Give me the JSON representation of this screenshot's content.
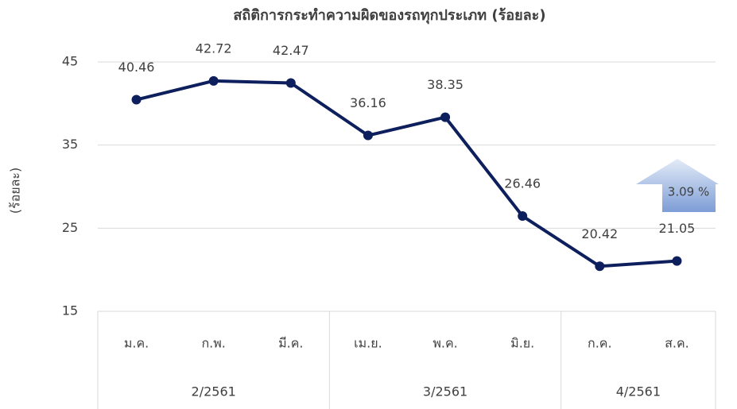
{
  "chart_data": {
    "type": "line",
    "title": "สถิติการกระทำความผิดของรถทุกประเภท (ร้อยละ)",
    "y_label": "(ร้อยละ)",
    "groups": [
      {
        "label": "2/2561",
        "categories": [
          "ม.ค.",
          "ก.พ.",
          "มี.ค."
        ]
      },
      {
        "label": "3/2561",
        "categories": [
          "เม.ย.",
          "พ.ค.",
          "มิ.ย."
        ]
      },
      {
        "label": "4/2561",
        "categories": [
          "ก.ค.",
          "ส.ค."
        ]
      }
    ],
    "values": [
      40.46,
      42.72,
      42.47,
      36.16,
      38.35,
      26.46,
      20.42,
      21.05
    ],
    "color": "#0d1f5c",
    "ylim": [
      15,
      45
    ],
    "yticks": [
      15,
      25,
      35,
      45
    ],
    "grid": true,
    "annotation": "3.09 %"
  }
}
